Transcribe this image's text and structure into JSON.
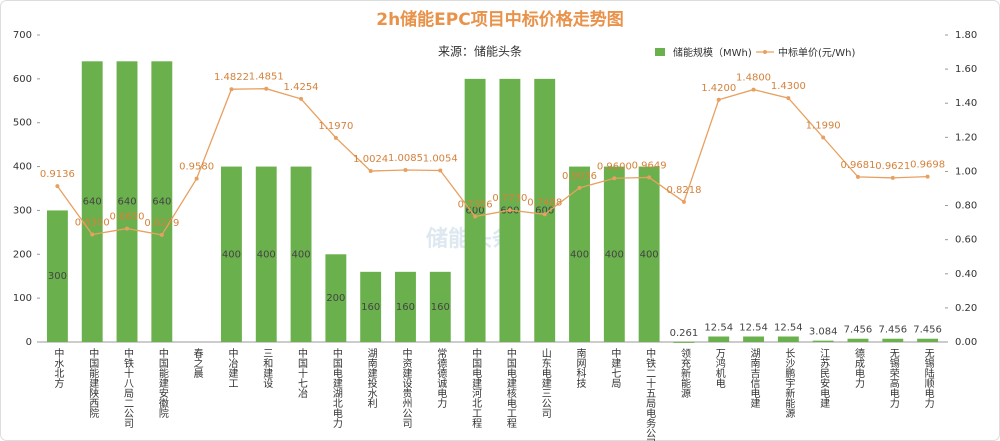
{
  "chart_data": {
    "type": "bar_line",
    "title": "2h储能EPC项目中标价格走势图",
    "subtitle": "来源：储能头条",
    "watermark": "储能头条",
    "categories": [
      "中水北方",
      "中国能建陕西院",
      "中铁十八局二公司",
      "中国能建安徽院",
      "春之晨",
      "中冶建工",
      "三和建设",
      "中国十七冶",
      "中国电建湖北电力",
      "湖南建投水利",
      "中资建设贵州公司",
      "常德德诚电力",
      "中国电建河北工程",
      "中国电建核电工程",
      "山东电建三公司",
      "南网科技",
      "中建七局",
      "中铁二十五局电务公司",
      "领充新能源",
      "万鸿机电",
      "湖南吉信电建",
      "长沙鹏宇新能源",
      "江苏民安电建",
      "德成电力",
      "无锡荣高电力",
      "无锡陆顺电力"
    ],
    "series": [
      {
        "name": "储能规模（MWh)",
        "color": "#6ab04c",
        "kind": "bar",
        "values": [
          300,
          640,
          640,
          640,
          null,
          400,
          400,
          400,
          200,
          160,
          160,
          160,
          600,
          600,
          600,
          400,
          400,
          400,
          0.261,
          12.54,
          12.54,
          12.54,
          3.084,
          7.456,
          7.456,
          7.456
        ]
      },
      {
        "name": "中标单价(元/Wh)",
        "color": "#e8a060",
        "kind": "line",
        "axis": "y2",
        "values": [
          0.9136,
          0.63,
          0.665,
          0.6279,
          0.958,
          1.4822,
          1.4851,
          1.4254,
          1.197,
          1.0024,
          1.0085,
          1.0054,
          0.7356,
          0.773,
          0.7488,
          0.9036,
          0.96,
          0.9649,
          0.8218,
          1.42,
          1.48,
          1.43,
          1.199,
          0.9681,
          0.9621,
          0.9698
        ],
        "value_labels": [
          "0.9136",
          "0.6300",
          "0.6650",
          "0.6279",
          "0.9580",
          "1.4822",
          "1.4851",
          "1.4254",
          "1.1970",
          "1.0024",
          "1.0085",
          "1.0054",
          "0.7356",
          "0.7730",
          "0.7488",
          "0.9036",
          "0.9600",
          "0.9649",
          "0.8218",
          "1.4200",
          "1.4800",
          "1.4300",
          "1.1990",
          "0.9681",
          "0.9621",
          "0.9698"
        ]
      }
    ],
    "ylim": [
      0,
      700
    ],
    "yticks": [
      0,
      100,
      200,
      300,
      400,
      500,
      600,
      700
    ],
    "y2lim": [
      0,
      1.8
    ],
    "y2ticks": [
      {
        "value": 0,
        "label": "0.00"
      },
      {
        "value": 0.2,
        "label": "0.20"
      },
      {
        "value": 0.4,
        "label": "0.40"
      },
      {
        "value": 0.6,
        "label": "0.60"
      },
      {
        "value": 0.8,
        "label": "0.80"
      },
      {
        "value": 1,
        "label": "1.00"
      },
      {
        "value": 1.2,
        "label": "1.20"
      },
      {
        "value": 1.4,
        "label": "1.40"
      },
      {
        "value": 1.6,
        "label": "1.60"
      },
      {
        "value": 1.8,
        "label": "1.80"
      }
    ],
    "legend": "top-right"
  }
}
